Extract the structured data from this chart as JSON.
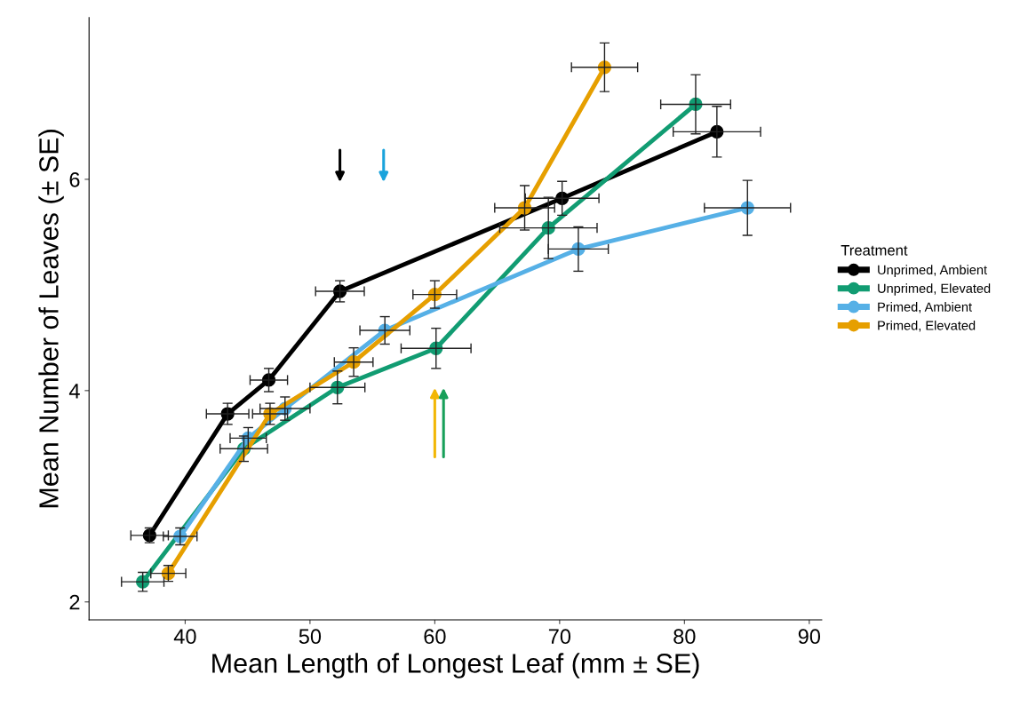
{
  "chart_data": {
    "type": "line",
    "xlabel": "Mean Length of Longest Leaf (mm ± SE)",
    "ylabel": "Mean Number of Leaves (± SE)",
    "legend_title": "Treatment",
    "legend": "right",
    "marker": "circle",
    "line_style": "solid",
    "grid": false,
    "xlim": [
      32.3,
      91.0
    ],
    "xticks": [
      40,
      50,
      60,
      70,
      80,
      90
    ],
    "ylim": [
      1.83,
      7.53
    ],
    "yticks": [
      2,
      4,
      6
    ],
    "series": [
      {
        "name": "Unprimed, Ambient",
        "color": "#000000",
        "x": [
          37.15,
          43.4,
          46.7,
          52.4,
          70.2,
          82.6
        ],
        "values": [
          2.63,
          3.78,
          4.1,
          4.94,
          5.82,
          6.45
        ],
        "xerrors": [
          1.5,
          1.7,
          1.5,
          1.95,
          2.95,
          3.5
        ],
        "errors": [
          0.07,
          0.1,
          0.11,
          0.1,
          0.16,
          0.24
        ]
      },
      {
        "name": "Unprimed, Elevated",
        "color": "#119c72",
        "x": [
          36.6,
          44.7,
          52.2,
          60.1,
          69.1,
          80.9
        ],
        "values": [
          2.19,
          3.45,
          4.03,
          4.4,
          5.54,
          6.71
        ],
        "xerrors": [
          1.7,
          1.9,
          2.2,
          2.8,
          3.9,
          2.8
        ],
        "errors": [
          0.09,
          0.12,
          0.155,
          0.19,
          0.29,
          0.28
        ]
      },
      {
        "name": "Primed, Ambient",
        "color": "#56b0e6",
        "x": [
          39.6,
          45.05,
          48.0,
          56.0,
          71.5,
          85.05
        ],
        "values": [
          2.62,
          3.55,
          3.83,
          4.57,
          5.34,
          5.73
        ],
        "xerrors": [
          1.35,
          1.45,
          2.0,
          2.0,
          2.4,
          3.45
        ],
        "errors": [
          0.08,
          0.1,
          0.11,
          0.13,
          0.21,
          0.26
        ]
      },
      {
        "name": "Primed, Elevated",
        "color": "#e69f00",
        "x": [
          38.65,
          46.8,
          53.5,
          60.0,
          67.2,
          73.6
        ],
        "values": [
          2.27,
          3.78,
          4.27,
          4.91,
          5.73,
          7.06
        ],
        "xerrors": [
          1.4,
          1.4,
          1.55,
          1.75,
          2.4,
          2.65
        ],
        "errors": [
          0.075,
          0.1,
          0.135,
          0.13,
          0.21,
          0.23
        ]
      }
    ]
  }
}
